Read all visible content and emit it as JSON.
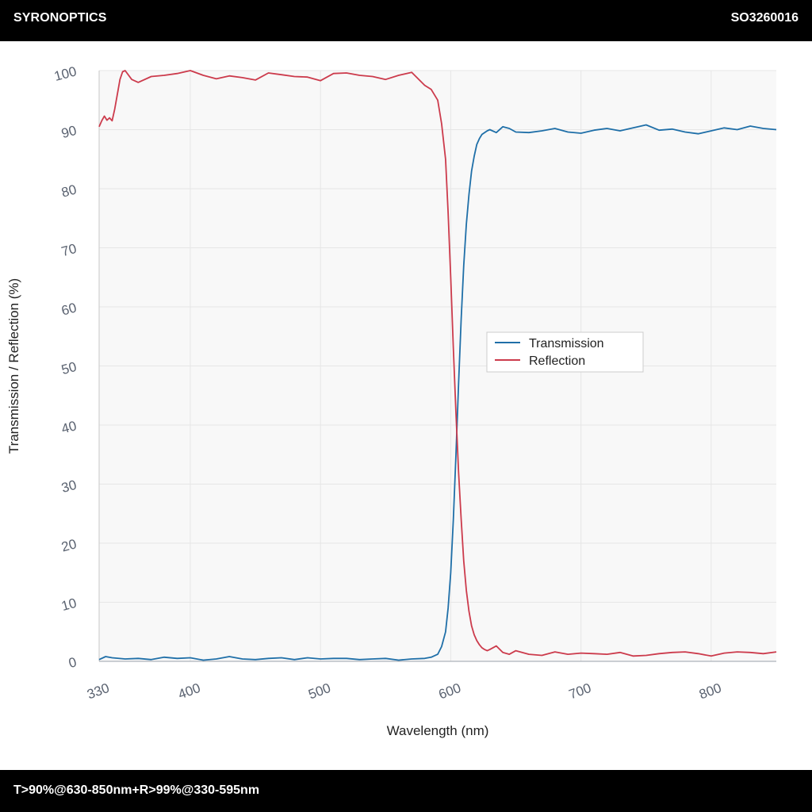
{
  "header": {
    "brand": "SYRONOPTICS",
    "part_number": "SO3260016"
  },
  "footer": {
    "spec": "T>90%@630-850nm+R>99%@330-595nm"
  },
  "colors": {
    "transmission": "#1f6fa8",
    "reflection": "#cc3b4c",
    "plot_background": "#f8f8f8",
    "grid": "#e6e6e6"
  },
  "chart_data": {
    "type": "line",
    "xlabel": "Wavelength (nm)",
    "ylabel": "Transmission / Reflection (%)",
    "xlim": [
      330,
      850
    ],
    "ylim": [
      0,
      100
    ],
    "x_ticks": [
      330,
      400,
      500,
      600,
      700,
      800
    ],
    "y_ticks": [
      0,
      10,
      20,
      30,
      40,
      50,
      60,
      70,
      80,
      90,
      100
    ],
    "grid": true,
    "legend_position": "center-right",
    "series": [
      {
        "name": "Transmission",
        "color": "#1f6fa8",
        "x": [
          330,
          335,
          340,
          350,
          360,
          370,
          380,
          390,
          400,
          410,
          420,
          430,
          440,
          450,
          460,
          470,
          480,
          490,
          500,
          510,
          520,
          530,
          540,
          550,
          560,
          570,
          580,
          585,
          590,
          593,
          596,
          598,
          600,
          602,
          604,
          606,
          608,
          610,
          612,
          614,
          616,
          618,
          620,
          622,
          624,
          626,
          628,
          630,
          635,
          640,
          645,
          650,
          660,
          670,
          680,
          690,
          700,
          710,
          720,
          730,
          740,
          750,
          760,
          770,
          780,
          790,
          800,
          810,
          820,
          830,
          840,
          850
        ],
        "y": [
          0.3,
          0.8,
          0.6,
          0.4,
          0.5,
          0.3,
          0.7,
          0.5,
          0.6,
          0.2,
          0.4,
          0.8,
          0.4,
          0.3,
          0.5,
          0.6,
          0.3,
          0.6,
          0.4,
          0.5,
          0.5,
          0.3,
          0.4,
          0.5,
          0.2,
          0.4,
          0.5,
          0.7,
          1.2,
          2.5,
          5,
          9,
          15,
          24,
          35,
          47,
          58,
          67,
          74,
          79,
          83,
          85.5,
          87.5,
          88.5,
          89.2,
          89.5,
          89.8,
          90,
          89.5,
          90.5,
          90.2,
          89.6,
          89.5,
          89.8,
          90.2,
          89.6,
          89.4,
          89.9,
          90.2,
          89.8,
          90.3,
          90.8,
          89.9,
          90.1,
          89.6,
          89.3,
          89.8,
          90.3,
          90.0,
          90.6,
          90.2,
          90.0
        ]
      },
      {
        "name": "Reflection",
        "color": "#cc3b4c",
        "x": [
          330,
          332,
          334,
          336,
          338,
          340,
          342,
          344,
          346,
          348,
          350,
          355,
          360,
          370,
          380,
          390,
          400,
          410,
          420,
          430,
          440,
          450,
          460,
          470,
          480,
          490,
          500,
          510,
          520,
          530,
          540,
          550,
          560,
          570,
          580,
          585,
          590,
          593,
          596,
          598,
          600,
          602,
          604,
          606,
          608,
          610,
          612,
          614,
          616,
          618,
          620,
          622,
          624,
          626,
          628,
          630,
          635,
          640,
          645,
          650,
          660,
          670,
          680,
          690,
          700,
          710,
          720,
          730,
          740,
          750,
          760,
          770,
          780,
          790,
          800,
          810,
          820,
          830,
          840,
          850
        ],
        "y": [
          90.5,
          91.5,
          92.3,
          91.6,
          92.0,
          91.5,
          93.5,
          96.0,
          98.5,
          99.8,
          100.0,
          98.5,
          98.0,
          99.0,
          99.2,
          99.5,
          100.0,
          99.2,
          98.6,
          99.1,
          98.8,
          98.4,
          99.6,
          99.3,
          99.0,
          98.9,
          98.3,
          99.5,
          99.6,
          99.2,
          99.0,
          98.5,
          99.2,
          99.7,
          97.5,
          96.8,
          95.0,
          91.0,
          85.0,
          76.0,
          65.0,
          53.0,
          42.0,
          32.0,
          24.0,
          17.0,
          12.0,
          8.5,
          6.0,
          4.5,
          3.5,
          2.8,
          2.3,
          2.0,
          1.8,
          2.0,
          2.6,
          1.5,
          1.2,
          1.8,
          1.2,
          1.0,
          1.6,
          1.2,
          1.4,
          1.3,
          1.2,
          1.5,
          0.9,
          1.0,
          1.3,
          1.5,
          1.6,
          1.3,
          0.9,
          1.4,
          1.6,
          1.5,
          1.3,
          1.6
        ]
      }
    ]
  }
}
